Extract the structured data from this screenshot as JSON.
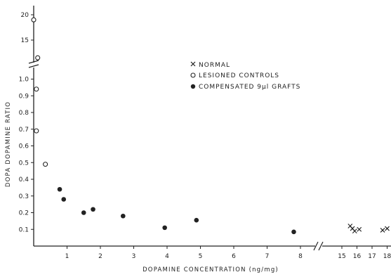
{
  "chart_data": {
    "type": "scatter",
    "title": "",
    "xlabel": "DOPAMINE CONCENTRATION (ng/mg)",
    "ylabel": "DOPA DOPAMINE RATIO",
    "x_ticks_left": [
      "1",
      "2",
      "3",
      "4",
      "5",
      "6",
      "7",
      "8"
    ],
    "x_ticks_right": [
      "15",
      "16",
      "17",
      "18"
    ],
    "y_ticks_lower": [
      "0.1",
      "0.2",
      "0.3",
      "0.4",
      "0.5",
      "0.6",
      "0.7",
      "0.8",
      "0.9",
      "1.0"
    ],
    "y_ticks_upper": [
      "15",
      "20"
    ],
    "x_axis_break": "between 8 and 15",
    "y_axis_break": "between 1.0 and 15",
    "legend_position": "top-center",
    "grid": false,
    "series": [
      {
        "name": "NORMAL",
        "marker": "cross",
        "points": [
          [
            15.55,
            0.12
          ],
          [
            15.7,
            0.105
          ],
          [
            15.85,
            0.09
          ],
          [
            16.15,
            0.1
          ],
          [
            17.7,
            0.095
          ],
          [
            18.0,
            0.105
          ]
        ]
      },
      {
        "name": "LESIONED CONTROLS",
        "marker": "open-circle",
        "points": [
          [
            0.0,
            19.0
          ],
          [
            0.12,
            11.5
          ],
          [
            0.08,
            0.94
          ],
          [
            0.08,
            0.69
          ],
          [
            0.35,
            0.49
          ]
        ]
      },
      {
        "name": "COMPENSATED 9µl GRAFTS",
        "marker": "filled-circle",
        "points": [
          [
            0.78,
            0.34
          ],
          [
            0.9,
            0.28
          ],
          [
            1.5,
            0.2
          ],
          [
            1.78,
            0.22
          ],
          [
            2.68,
            0.18
          ],
          [
            3.93,
            0.11
          ],
          [
            4.88,
            0.155
          ],
          [
            7.8,
            0.085
          ]
        ]
      }
    ]
  }
}
